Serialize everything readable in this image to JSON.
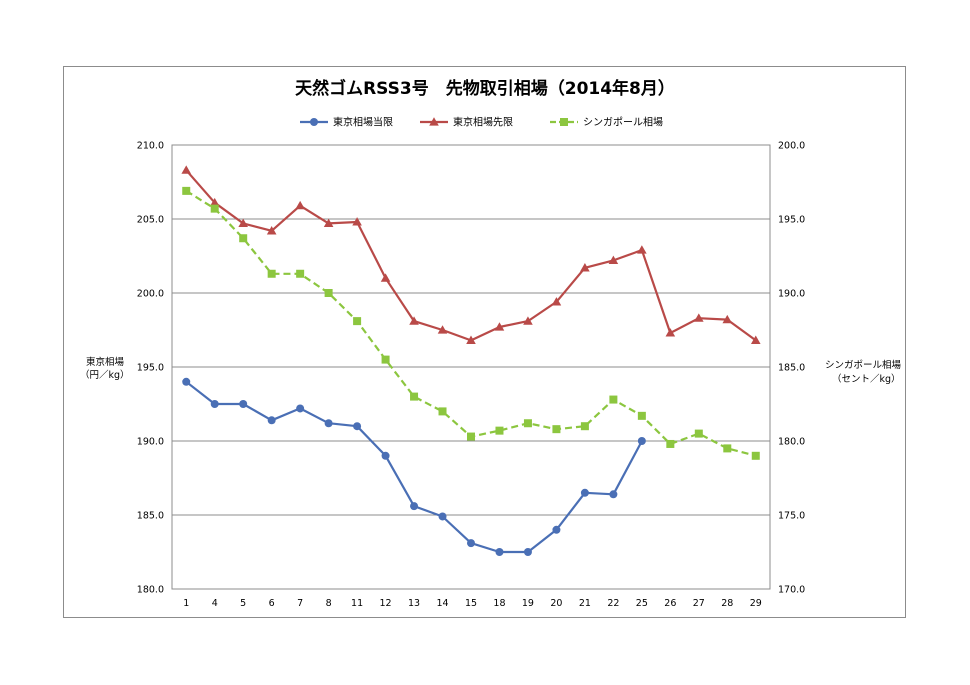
{
  "chart_data": {
    "type": "line",
    "title": "天然ゴムRSS3号　先物取引相場（2014年8月）",
    "categories": [
      "1",
      "4",
      "5",
      "6",
      "7",
      "8",
      "11",
      "12",
      "13",
      "14",
      "15",
      "18",
      "19",
      "20",
      "21",
      "22",
      "25",
      "26",
      "27",
      "28",
      "29"
    ],
    "ylabel_left_line1": "東京相場",
    "ylabel_left_line2": "（円／kg）",
    "ylabel_right_line1": "シンガポール相場",
    "ylabel_right_line2": "（セント／kg）",
    "ylim_left": [
      180,
      210
    ],
    "ylim_right": [
      170,
      200
    ],
    "yticks_left": [
      "210.0",
      "205.0",
      "200.0",
      "195.0",
      "190.0",
      "185.0",
      "180.0"
    ],
    "yticks_right": [
      "200.0",
      "195.0",
      "190.0",
      "185.0",
      "180.0",
      "175.0",
      "170.0"
    ],
    "grid": true,
    "legend_position": "top",
    "series": [
      {
        "name": "東京相場当限",
        "axis": "left",
        "color": "#4a6fb5",
        "marker": "circle",
        "dash": false,
        "values": [
          194.0,
          192.5,
          192.5,
          191.4,
          192.2,
          191.2,
          191.0,
          189.0,
          185.6,
          184.9,
          183.1,
          182.5,
          182.5,
          184.0,
          186.5,
          186.4,
          190.0,
          null,
          null,
          null,
          null
        ]
      },
      {
        "name": "東京相場先限",
        "axis": "left",
        "color": "#b94a48",
        "marker": "triangle",
        "dash": false,
        "values": [
          208.3,
          206.1,
          204.7,
          204.2,
          205.9,
          204.7,
          204.8,
          201.0,
          198.1,
          197.5,
          196.8,
          197.7,
          198.1,
          199.4,
          201.7,
          202.2,
          202.9,
          197.3,
          198.3,
          198.2,
          196.8
        ]
      },
      {
        "name": "シンガポール相場",
        "axis": "right",
        "color": "#8cc63f",
        "marker": "square",
        "dash": true,
        "values": [
          196.9,
          195.7,
          193.7,
          191.3,
          191.3,
          190.0,
          188.1,
          185.5,
          183.0,
          182.0,
          180.3,
          180.7,
          181.2,
          180.8,
          181.0,
          182.8,
          181.7,
          179.8,
          180.5,
          179.5,
          179.0
        ]
      }
    ]
  }
}
